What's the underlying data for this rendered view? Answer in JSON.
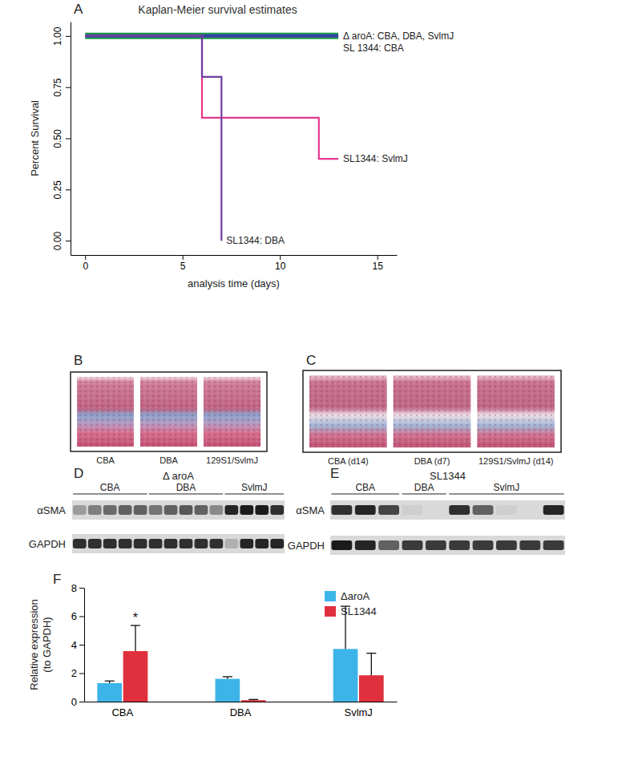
{
  "chart_data": [
    {
      "type": "line",
      "annotations": [
        "A"
      ],
      "title": "Kaplan-Meier survival estimates",
      "x_label": "analysis time (days)",
      "y_label": "Percent Survival",
      "xlim": [
        -0.75,
        16
      ],
      "xticks": [
        0,
        5,
        10,
        15
      ],
      "ylim": [
        -0.07,
        1.07
      ],
      "yticks": [
        {
          "value": 0,
          "label": "0.00"
        },
        {
          "value": 0.25,
          "label": "0.25"
        },
        {
          "value": 0.5,
          "label": "0.50"
        },
        {
          "value": 0.75,
          "label": "0.75"
        },
        {
          "value": 1,
          "label": "1.00"
        }
      ],
      "line_style": "step",
      "series": [
        {
          "name": "Δ aroA: CBA, DBA, SvlmJ",
          "color": "#1f9e48",
          "x": [
            0,
            13
          ],
          "values": [
            1,
            1
          ]
        },
        {
          "name": "SL 1344: CBA",
          "color": "#3a3ea8",
          "x": [
            0,
            13
          ],
          "values": [
            1,
            1
          ]
        },
        {
          "name": "SL1344: SvlmJ",
          "color": "#e8388f",
          "x": [
            0,
            6,
            12,
            13
          ],
          "values": [
            1,
            0.6,
            0.4,
            0.4
          ]
        },
        {
          "name": "SL1344: DBA",
          "color": "#6b3fa0",
          "x": [
            0,
            6,
            7
          ],
          "values": [
            1,
            0.8,
            0
          ]
        }
      ]
    },
    {
      "type": "image",
      "annotations": [
        "B"
      ],
      "categories": [
        "CBA",
        "DBA",
        "129S1/SvlmJ"
      ]
    },
    {
      "type": "image",
      "annotations": [
        "C"
      ],
      "categories": [
        "CBA (d14)",
        "DBA (d7)",
        "129S1/SvlmJ (d14)"
      ]
    },
    {
      "type": "blot",
      "annotations": [
        "D"
      ],
      "title": "Δ aroA",
      "categories": [
        "CBA",
        null,
        null,
        null,
        null,
        "DBA",
        null,
        null,
        null,
        null,
        "SvlmJ",
        null,
        null,
        null
      ],
      "series": [
        {
          "name": "αSMA",
          "values": [
            0.3,
            0.45,
            0.55,
            0.6,
            0.6,
            0.5,
            0.6,
            0.65,
            0.6,
            0.4,
            0.9,
            0.95,
            0.95,
            0.85
          ]
        },
        {
          "name": "GAPDH",
          "values": [
            0.85,
            0.85,
            0.85,
            0.85,
            0.85,
            0.85,
            0.85,
            0.85,
            0.85,
            0.85,
            0.2,
            0.9,
            0.9,
            0.9
          ]
        }
      ]
    },
    {
      "type": "blot",
      "annotations": [
        "E"
      ],
      "title": "SL1344",
      "categories": [
        "CBA",
        null,
        null,
        "DBA",
        null,
        "SvlmJ",
        null,
        null,
        null,
        null
      ],
      "series": [
        {
          "name": "αSMA",
          "values": [
            0.85,
            0.9,
            0.75,
            0.05,
            0,
            0.85,
            0.6,
            0.05,
            0,
            0.9
          ]
        },
        {
          "name": "GAPDH",
          "values": [
            0.95,
            0.9,
            0.6,
            0.8,
            0.8,
            0.8,
            0.8,
            0.8,
            0.8,
            0.8
          ]
        }
      ]
    },
    {
      "type": "bar",
      "annotations": [
        "F"
      ],
      "y_label": [
        "Relative expression",
        "(to GAPDH)"
      ],
      "categories": [
        "CBA",
        "DBA",
        "SvlmJ"
      ],
      "ylim": [
        0,
        8
      ],
      "yticks": [
        0,
        2,
        4,
        6,
        8
      ],
      "legend": "top-right",
      "series": [
        {
          "name": "ΔaroA",
          "color": "#3db4e8",
          "values": [
            1.3,
            1.6,
            3.7
          ],
          "errors": [
            0.15,
            0.15,
            3.0
          ]
        },
        {
          "name": "SL1344",
          "color": "#e0303e",
          "values": [
            3.55,
            0.1,
            1.85
          ],
          "errors": [
            1.8,
            0.05,
            1.55
          ],
          "significance": [
            "*",
            null,
            null
          ]
        }
      ]
    }
  ]
}
